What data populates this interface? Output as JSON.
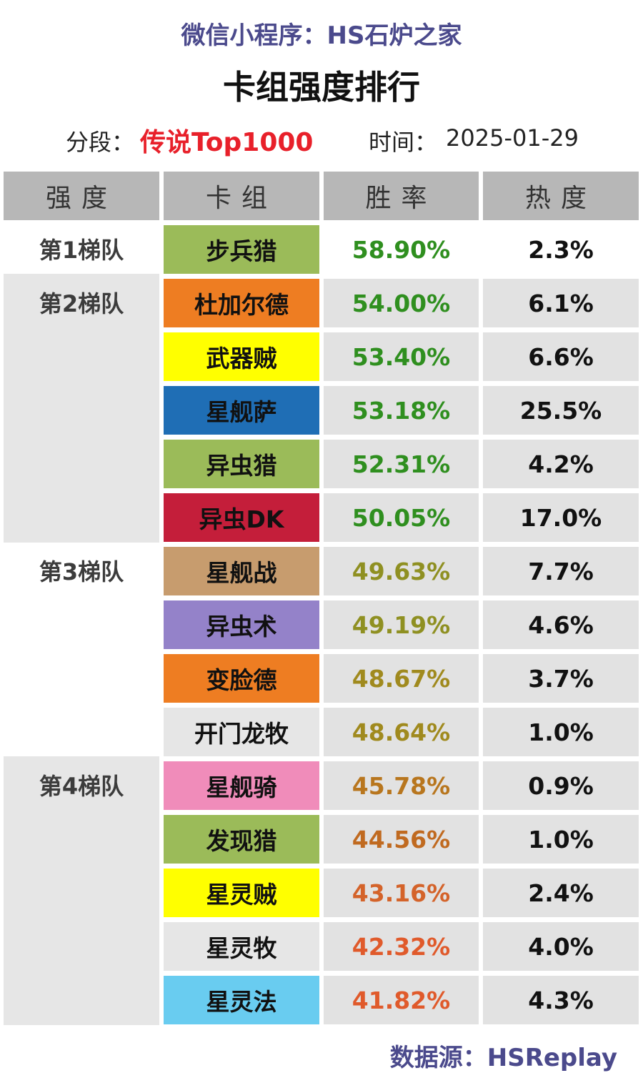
{
  "header": {
    "app_label": "微信小程序：HS石炉之家",
    "title": "卡组强度排行",
    "segment_label": "分段：",
    "segment_value": "传说Top1000",
    "time_label": "时间：",
    "time_value": "2025-01-29"
  },
  "columns": [
    "强度",
    "卡组",
    "胜率",
    "热度"
  ],
  "tiers": [
    {
      "label": "第1梯队",
      "decks": [
        {
          "name": "步兵猎",
          "win_rate": "58.90%",
          "popularity": "2.3%",
          "color": "#9bbb59",
          "rate_color": "#2f8f1f"
        }
      ]
    },
    {
      "label": "第2梯队",
      "decks": [
        {
          "name": "杜加尔德",
          "win_rate": "54.00%",
          "popularity": "6.1%",
          "color": "#ee7d22",
          "rate_color": "#2f8f1f"
        },
        {
          "name": "武器贼",
          "win_rate": "53.40%",
          "popularity": "6.6%",
          "color": "#ffff00",
          "rate_color": "#2f8f1f"
        },
        {
          "name": "星舰萨",
          "win_rate": "53.18%",
          "popularity": "25.5%",
          "color": "#1f6eb5",
          "rate_color": "#2f8f1f"
        },
        {
          "name": "异虫猎",
          "win_rate": "52.31%",
          "popularity": "4.2%",
          "color": "#9bbb59",
          "rate_color": "#2f8f1f"
        },
        {
          "name": "异虫DK",
          "win_rate": "50.05%",
          "popularity": "17.0%",
          "color": "#c41e3a",
          "rate_color": "#2f8f1f"
        }
      ]
    },
    {
      "label": "第3梯队",
      "decks": [
        {
          "name": "星舰战",
          "win_rate": "49.63%",
          "popularity": "7.7%",
          "color": "#c79c6e",
          "rate_color": "#8f9022"
        },
        {
          "name": "异虫术",
          "win_rate": "49.19%",
          "popularity": "4.6%",
          "color": "#9482c9",
          "rate_color": "#8f9022"
        },
        {
          "name": "变脸德",
          "win_rate": "48.67%",
          "popularity": "3.7%",
          "color": "#ee7d22",
          "rate_color": "#a08a1e"
        },
        {
          "name": "开门龙牧",
          "win_rate": "48.64%",
          "popularity": "1.0%",
          "color": "#e6e6e6",
          "rate_color": "#a08a1e"
        }
      ]
    },
    {
      "label": "第4梯队",
      "decks": [
        {
          "name": "星舰骑",
          "win_rate": "45.78%",
          "popularity": "0.9%",
          "color": "#f08cba",
          "rate_color": "#b8761e"
        },
        {
          "name": "发现猎",
          "win_rate": "44.56%",
          "popularity": "1.0%",
          "color": "#9bbb59",
          "rate_color": "#c06a20"
        },
        {
          "name": "星灵贼",
          "win_rate": "43.16%",
          "popularity": "2.4%",
          "color": "#ffff00",
          "rate_color": "#d4632a"
        },
        {
          "name": "星灵牧",
          "win_rate": "42.32%",
          "popularity": "4.0%",
          "color": "#e6e6e6",
          "rate_color": "#e05a2b"
        },
        {
          "name": "星灵法",
          "win_rate": "41.82%",
          "popularity": "4.3%",
          "color": "#69ccf0",
          "rate_color": "#e05a2b"
        }
      ]
    }
  ],
  "footer": {
    "source_label": "数据源：",
    "source_value": "HSReplay"
  }
}
